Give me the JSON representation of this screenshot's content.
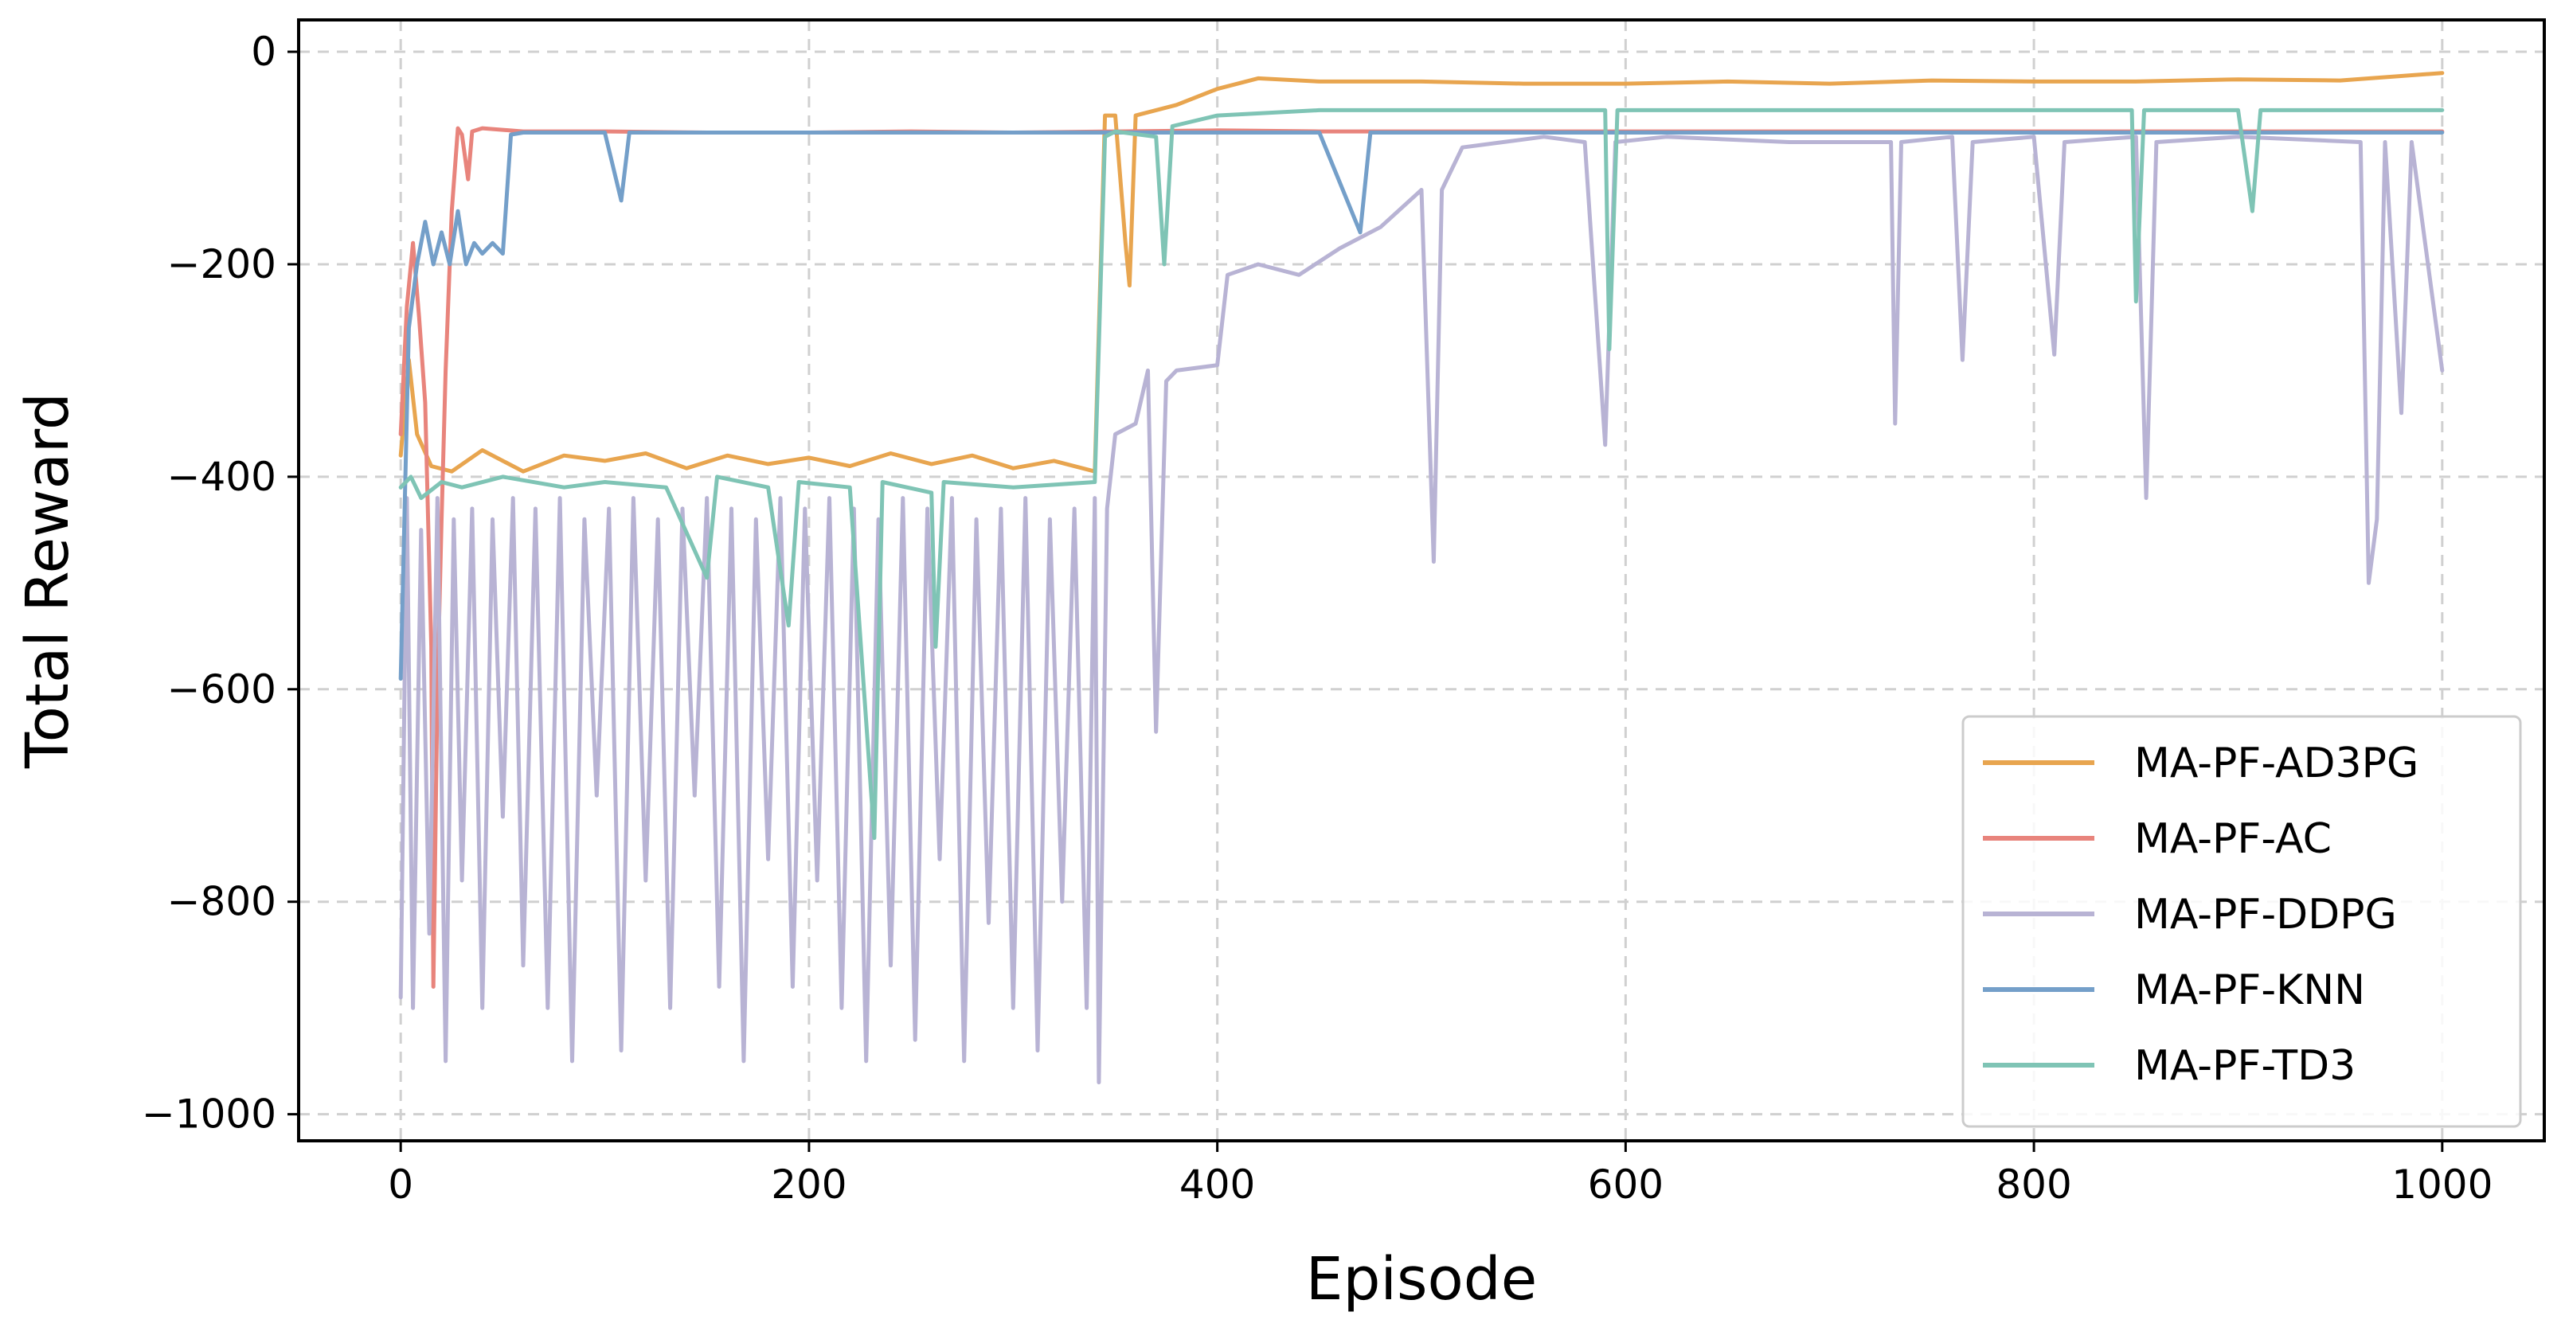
{
  "chart_data": {
    "type": "line",
    "title": "",
    "xlabel": "Episode",
    "ylabel": "Total Reward",
    "xlim": [
      -50,
      1050
    ],
    "ylim": [
      -1025,
      30
    ],
    "x_ticks": [
      0,
      200,
      400,
      600,
      800,
      1000
    ],
    "x_tick_labels": [
      "0",
      "200",
      "400",
      "600",
      "800",
      "1000"
    ],
    "y_ticks": [
      0,
      -200,
      -400,
      -600,
      -800,
      -1000
    ],
    "y_tick_labels": [
      "0",
      "−200",
      "−400",
      "−600",
      "−800",
      "−1000"
    ],
    "grid": true,
    "legend_position": "lower-right",
    "series": [
      {
        "name": "MA-PF-AD3PG",
        "color": "#e8a54f",
        "points": [
          [
            0,
            -380
          ],
          [
            4,
            -290
          ],
          [
            8,
            -360
          ],
          [
            15,
            -390
          ],
          [
            25,
            -395
          ],
          [
            40,
            -375
          ],
          [
            60,
            -395
          ],
          [
            80,
            -380
          ],
          [
            100,
            -385
          ],
          [
            120,
            -378
          ],
          [
            140,
            -392
          ],
          [
            160,
            -380
          ],
          [
            180,
            -388
          ],
          [
            200,
            -382
          ],
          [
            220,
            -390
          ],
          [
            240,
            -378
          ],
          [
            260,
            -388
          ],
          [
            280,
            -380
          ],
          [
            300,
            -392
          ],
          [
            320,
            -385
          ],
          [
            340,
            -395
          ],
          [
            345,
            -60
          ],
          [
            350,
            -60
          ],
          [
            355,
            -180
          ],
          [
            357,
            -220
          ],
          [
            360,
            -60
          ],
          [
            380,
            -50
          ],
          [
            400,
            -35
          ],
          [
            420,
            -25
          ],
          [
            450,
            -28
          ],
          [
            500,
            -28
          ],
          [
            550,
            -30
          ],
          [
            600,
            -30
          ],
          [
            650,
            -28
          ],
          [
            700,
            -30
          ],
          [
            750,
            -27
          ],
          [
            800,
            -28
          ],
          [
            850,
            -28
          ],
          [
            900,
            -26
          ],
          [
            950,
            -27
          ],
          [
            1000,
            -20
          ]
        ]
      },
      {
        "name": "MA-PF-AC",
        "color": "#e8847c",
        "points": [
          [
            0,
            -360
          ],
          [
            3,
            -240
          ],
          [
            6,
            -180
          ],
          [
            9,
            -250
          ],
          [
            12,
            -330
          ],
          [
            15,
            -560
          ],
          [
            16,
            -880
          ],
          [
            18,
            -600
          ],
          [
            20,
            -440
          ],
          [
            22,
            -300
          ],
          [
            25,
            -150
          ],
          [
            28,
            -72
          ],
          [
            30,
            -78
          ],
          [
            33,
            -120
          ],
          [
            35,
            -75
          ],
          [
            40,
            -72
          ],
          [
            60,
            -75
          ],
          [
            100,
            -75
          ],
          [
            150,
            -76
          ],
          [
            200,
            -76
          ],
          [
            250,
            -75
          ],
          [
            300,
            -76
          ],
          [
            350,
            -75
          ],
          [
            400,
            -74
          ],
          [
            450,
            -75
          ],
          [
            500,
            -75
          ],
          [
            550,
            -75
          ],
          [
            600,
            -75
          ],
          [
            650,
            -75
          ],
          [
            700,
            -75
          ],
          [
            750,
            -75
          ],
          [
            800,
            -75
          ],
          [
            850,
            -75
          ],
          [
            900,
            -75
          ],
          [
            950,
            -75
          ],
          [
            1000,
            -75
          ]
        ]
      },
      {
        "name": "MA-PF-DDPG",
        "color": "#b8b3d4",
        "points": [
          [
            0,
            -890
          ],
          [
            3,
            -420
          ],
          [
            6,
            -900
          ],
          [
            10,
            -450
          ],
          [
            14,
            -830
          ],
          [
            18,
            -420
          ],
          [
            22,
            -950
          ],
          [
            26,
            -440
          ],
          [
            30,
            -780
          ],
          [
            35,
            -430
          ],
          [
            40,
            -900
          ],
          [
            45,
            -440
          ],
          [
            50,
            -720
          ],
          [
            55,
            -420
          ],
          [
            60,
            -860
          ],
          [
            66,
            -430
          ],
          [
            72,
            -900
          ],
          [
            78,
            -420
          ],
          [
            84,
            -950
          ],
          [
            90,
            -440
          ],
          [
            96,
            -700
          ],
          [
            102,
            -430
          ],
          [
            108,
            -940
          ],
          [
            114,
            -420
          ],
          [
            120,
            -780
          ],
          [
            126,
            -440
          ],
          [
            132,
            -900
          ],
          [
            138,
            -430
          ],
          [
            144,
            -700
          ],
          [
            150,
            -420
          ],
          [
            156,
            -880
          ],
          [
            162,
            -430
          ],
          [
            168,
            -950
          ],
          [
            174,
            -440
          ],
          [
            180,
            -760
          ],
          [
            186,
            -420
          ],
          [
            192,
            -880
          ],
          [
            198,
            -430
          ],
          [
            204,
            -780
          ],
          [
            210,
            -420
          ],
          [
            216,
            -900
          ],
          [
            222,
            -430
          ],
          [
            228,
            -950
          ],
          [
            234,
            -440
          ],
          [
            240,
            -860
          ],
          [
            246,
            -420
          ],
          [
            252,
            -930
          ],
          [
            258,
            -430
          ],
          [
            264,
            -760
          ],
          [
            270,
            -420
          ],
          [
            276,
            -950
          ],
          [
            282,
            -440
          ],
          [
            288,
            -820
          ],
          [
            294,
            -430
          ],
          [
            300,
            -900
          ],
          [
            306,
            -420
          ],
          [
            312,
            -940
          ],
          [
            318,
            -440
          ],
          [
            324,
            -800
          ],
          [
            330,
            -430
          ],
          [
            336,
            -900
          ],
          [
            340,
            -420
          ],
          [
            342,
            -970
          ],
          [
            346,
            -430
          ],
          [
            350,
            -360
          ],
          [
            360,
            -350
          ],
          [
            366,
            -300
          ],
          [
            370,
            -640
          ],
          [
            375,
            -310
          ],
          [
            380,
            -300
          ],
          [
            400,
            -295
          ],
          [
            405,
            -210
          ],
          [
            420,
            -200
          ],
          [
            440,
            -210
          ],
          [
            460,
            -185
          ],
          [
            480,
            -165
          ],
          [
            500,
            -130
          ],
          [
            506,
            -480
          ],
          [
            510,
            -130
          ],
          [
            520,
            -90
          ],
          [
            540,
            -85
          ],
          [
            560,
            -80
          ],
          [
            580,
            -85
          ],
          [
            590,
            -370
          ],
          [
            595,
            -85
          ],
          [
            620,
            -80
          ],
          [
            680,
            -85
          ],
          [
            730,
            -85
          ],
          [
            732,
            -350
          ],
          [
            735,
            -85
          ],
          [
            760,
            -80
          ],
          [
            765,
            -290
          ],
          [
            770,
            -85
          ],
          [
            800,
            -80
          ],
          [
            810,
            -285
          ],
          [
            815,
            -85
          ],
          [
            850,
            -80
          ],
          [
            855,
            -420
          ],
          [
            860,
            -85
          ],
          [
            900,
            -80
          ],
          [
            960,
            -85
          ],
          [
            964,
            -500
          ],
          [
            968,
            -440
          ],
          [
            972,
            -85
          ],
          [
            980,
            -340
          ],
          [
            985,
            -85
          ],
          [
            1000,
            -300
          ]
        ]
      },
      {
        "name": "MA-PF-KNN",
        "color": "#749fc9",
        "points": [
          [
            0,
            -590
          ],
          [
            4,
            -260
          ],
          [
            8,
            -200
          ],
          [
            12,
            -160
          ],
          [
            16,
            -200
          ],
          [
            20,
            -170
          ],
          [
            24,
            -200
          ],
          [
            28,
            -150
          ],
          [
            32,
            -200
          ],
          [
            36,
            -180
          ],
          [
            40,
            -190
          ],
          [
            45,
            -180
          ],
          [
            50,
            -190
          ],
          [
            54,
            -78
          ],
          [
            60,
            -76
          ],
          [
            100,
            -76
          ],
          [
            108,
            -140
          ],
          [
            112,
            -76
          ],
          [
            150,
            -76
          ],
          [
            200,
            -76
          ],
          [
            250,
            -76
          ],
          [
            300,
            -76
          ],
          [
            340,
            -76
          ],
          [
            350,
            -76
          ],
          [
            400,
            -76
          ],
          [
            450,
            -76
          ],
          [
            470,
            -170
          ],
          [
            475,
            -76
          ],
          [
            500,
            -76
          ],
          [
            550,
            -76
          ],
          [
            600,
            -76
          ],
          [
            650,
            -76
          ],
          [
            700,
            -76
          ],
          [
            750,
            -76
          ],
          [
            800,
            -76
          ],
          [
            850,
            -76
          ],
          [
            900,
            -76
          ],
          [
            950,
            -76
          ],
          [
            1000,
            -76
          ]
        ]
      },
      {
        "name": "MA-PF-TD3",
        "color": "#7fc4b5",
        "points": [
          [
            0,
            -410
          ],
          [
            5,
            -400
          ],
          [
            10,
            -420
          ],
          [
            20,
            -405
          ],
          [
            30,
            -410
          ],
          [
            50,
            -400
          ],
          [
            80,
            -410
          ],
          [
            100,
            -405
          ],
          [
            130,
            -410
          ],
          [
            150,
            -495
          ],
          [
            155,
            -400
          ],
          [
            180,
            -410
          ],
          [
            190,
            -540
          ],
          [
            195,
            -405
          ],
          [
            220,
            -410
          ],
          [
            232,
            -740
          ],
          [
            236,
            -405
          ],
          [
            260,
            -415
          ],
          [
            262,
            -560
          ],
          [
            266,
            -405
          ],
          [
            300,
            -410
          ],
          [
            340,
            -405
          ],
          [
            345,
            -80
          ],
          [
            350,
            -75
          ],
          [
            370,
            -80
          ],
          [
            374,
            -200
          ],
          [
            378,
            -70
          ],
          [
            400,
            -60
          ],
          [
            450,
            -55
          ],
          [
            500,
            -55
          ],
          [
            550,
            -55
          ],
          [
            590,
            -55
          ],
          [
            592,
            -280
          ],
          [
            596,
            -55
          ],
          [
            650,
            -55
          ],
          [
            700,
            -55
          ],
          [
            750,
            -55
          ],
          [
            800,
            -55
          ],
          [
            848,
            -55
          ],
          [
            850,
            -235
          ],
          [
            854,
            -55
          ],
          [
            900,
            -55
          ],
          [
            907,
            -150
          ],
          [
            911,
            -55
          ],
          [
            950,
            -55
          ],
          [
            1000,
            -55
          ]
        ]
      }
    ]
  }
}
